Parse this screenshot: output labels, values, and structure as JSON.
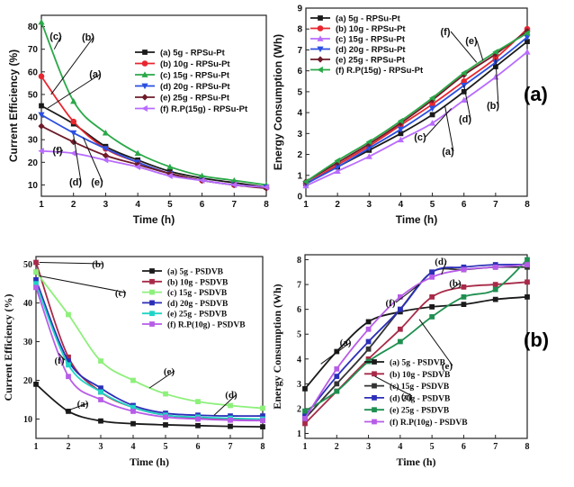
{
  "panel_labels": [
    "(a)",
    "(b)"
  ],
  "chart_data": [
    {
      "type": "line",
      "title": "",
      "xlabel": "Time (h)",
      "ylabel": "Current Efficiency (%)",
      "xlim": [
        1,
        8
      ],
      "ylim": [
        5,
        85
      ],
      "xticks": [
        "1",
        "2",
        "3",
        "4",
        "5",
        "6",
        "7",
        "8"
      ],
      "yticks": [
        "10",
        "20",
        "30",
        "40",
        "50",
        "60",
        "70",
        "80"
      ],
      "font": "sans",
      "x": [
        1,
        2,
        3,
        4,
        5,
        6,
        7,
        8
      ],
      "series": [
        {
          "name": "(a) 5g - RPSu-Pt",
          "tag": "(a)",
          "color": "#1a1a1a",
          "marker": "square",
          "values": [
            45,
            37,
            27,
            21,
            16,
            13,
            11,
            9
          ]
        },
        {
          "name": "(b) 10g - RPSu-Pt",
          "tag": "(b)",
          "color": "#e8262f",
          "marker": "circle",
          "values": [
            58,
            38,
            26,
            20,
            15,
            12,
            10,
            9
          ]
        },
        {
          "name": "(c) 15g - RPSu-Pt",
          "tag": "(c)",
          "color": "#2aa848",
          "marker": "triangle",
          "values": [
            82,
            47,
            33,
            24,
            18,
            14,
            12,
            10
          ]
        },
        {
          "name": "(d) 20g - RPSu-Pt",
          "tag": "(d)",
          "color": "#2b4fe0",
          "marker": "triangle-down",
          "values": [
            41,
            33,
            26,
            20,
            15,
            12,
            10,
            9
          ]
        },
        {
          "name": "(e) 25g - RPSu-Pt",
          "tag": "(e)",
          "color": "#6e1b2a",
          "marker": "diamond",
          "values": [
            36,
            29,
            23,
            19,
            15,
            12,
            10,
            8.5
          ]
        },
        {
          "name": "(f) R.P(15g) - RPSu-Pt",
          "tag": "(f)",
          "color": "#b86bff",
          "marker": "triangle-left",
          "values": [
            25,
            24,
            21,
            18,
            14,
            12,
            10,
            9
          ]
        }
      ]
    },
    {
      "type": "line",
      "title": "",
      "xlabel": "Time (h)",
      "ylabel": "Energy Consumption (Wh)",
      "xlim": [
        1,
        8
      ],
      "ylim": [
        0,
        9
      ],
      "xticks": [
        "1",
        "2",
        "3",
        "4",
        "5",
        "6",
        "7",
        "8"
      ],
      "yticks": [
        "0",
        "1",
        "2",
        "3",
        "4",
        "5",
        "6",
        "7",
        "8",
        "9"
      ],
      "font": "sans",
      "x": [
        1,
        2,
        3,
        4,
        5,
        6,
        7,
        8
      ],
      "series": [
        {
          "name": "(a) 5g - RPSu-Pt",
          "tag": "(a)",
          "color": "#1a1a1a",
          "marker": "square",
          "values": [
            0.6,
            1.4,
            2.2,
            3.0,
            3.9,
            5.0,
            6.2,
            7.4
          ]
        },
        {
          "name": "(b) 10g - RPSu-Pt",
          "tag": "(b)",
          "color": "#e8262f",
          "marker": "circle",
          "values": [
            0.6,
            1.5,
            2.4,
            3.4,
            4.4,
            5.5,
            6.6,
            8.0
          ]
        },
        {
          "name": "(c) 15g - RPSu-Pt",
          "tag": "(c)",
          "color": "#b86bff",
          "marker": "triangle",
          "values": [
            0.5,
            1.2,
            1.9,
            2.7,
            3.5,
            4.6,
            5.7,
            6.9
          ]
        },
        {
          "name": "(d) 20g - RPSu-Pt",
          "tag": "(d)",
          "color": "#2b4fe0",
          "marker": "triangle-down",
          "values": [
            0.6,
            1.4,
            2.3,
            3.2,
            4.2,
            5.3,
            6.4,
            7.6
          ]
        },
        {
          "name": "(e) 25g - RPSu-Pt",
          "tag": "(e)",
          "color": "#6e1b2a",
          "marker": "diamond",
          "values": [
            0.7,
            1.6,
            2.5,
            3.5,
            4.6,
            5.8,
            6.8,
            7.9
          ]
        },
        {
          "name": "(f) R.P(15g) - RPSu-Pt",
          "tag": "(f)",
          "color": "#2aa848",
          "marker": "triangle-left",
          "values": [
            0.7,
            1.7,
            2.6,
            3.6,
            4.7,
            5.9,
            6.9,
            7.8
          ]
        }
      ],
      "annotation_labels": [
        "(a)",
        "(b)",
        "(c)",
        "(d)",
        "(e)",
        "(f)"
      ]
    },
    {
      "type": "line",
      "title": "",
      "xlabel": "Time (h)",
      "ylabel": "Current Efficiency (%)",
      "xlim": [
        1,
        8
      ],
      "ylim": [
        5,
        52
      ],
      "xticks": [
        "1",
        "2",
        "3",
        "4",
        "5",
        "6",
        "7",
        "8"
      ],
      "yticks": [
        "10",
        "20",
        "30",
        "40",
        "50"
      ],
      "font": "serif",
      "x": [
        1,
        2,
        3,
        4,
        5,
        6,
        7,
        8
      ],
      "series": [
        {
          "name": "(a) 5g - PSDVB",
          "tag": "(a)",
          "color": "#1a1a1a",
          "marker": "square",
          "values": [
            19,
            12,
            9.5,
            8.8,
            8.5,
            8.3,
            8.1,
            8.0
          ]
        },
        {
          "name": "(b) 10g - PSDVB",
          "tag": "(b)",
          "color": "#a82a48",
          "marker": "square",
          "values": [
            50.5,
            26,
            17,
            13,
            11,
            10.3,
            10,
            9.8
          ]
        },
        {
          "name": "(c) 15g - PSDVB",
          "tag": "(c)",
          "color": "#8df07a",
          "marker": "square",
          "values": [
            48,
            37,
            25,
            20,
            16.5,
            14.5,
            13.5,
            12.8
          ]
        },
        {
          "name": "(d) 20g - PSDVB",
          "tag": "(d)",
          "color": "#2b2fb8",
          "marker": "square",
          "values": [
            46,
            25,
            18,
            13.5,
            11.5,
            11,
            10.8,
            10.8
          ]
        },
        {
          "name": "(e) 25g - PSDVB",
          "tag": "(e)",
          "color": "#1fd4c6",
          "marker": "square",
          "values": [
            45,
            24,
            17,
            13,
            11,
            10.5,
            10.2,
            10
          ]
        },
        {
          "name": "(f) R.P(10g) - PSDVB",
          "tag": "(f)",
          "color": "#b75ce8",
          "marker": "square",
          "values": [
            44,
            21,
            15,
            12,
            10.5,
            10,
            9.7,
            9.6
          ]
        }
      ]
    },
    {
      "type": "line",
      "title": "",
      "xlabel": "Time (h)",
      "ylabel": "Energy Consumption (Wh)",
      "xlim": [
        1,
        8
      ],
      "ylim": [
        0.8,
        8.2
      ],
      "xticks": [
        "1",
        "2",
        "3",
        "4",
        "5",
        "6",
        "7",
        "8"
      ],
      "yticks": [
        "1",
        "2",
        "3",
        "4",
        "5",
        "6",
        "7",
        "8"
      ],
      "font": "serif",
      "x": [
        1,
        2,
        3,
        4,
        5,
        6,
        7,
        8
      ],
      "series": [
        {
          "name": "(a) 5g - PSDVB",
          "tag": "(a)",
          "color": "#1a1a1a",
          "marker": "square",
          "values": [
            2.8,
            4.3,
            5.5,
            5.9,
            6.1,
            6.2,
            6.4,
            6.5
          ]
        },
        {
          "name": "(b) 10g - PSDVB",
          "tag": "(b)",
          "color": "#a82a48",
          "marker": "square",
          "values": [
            1.4,
            2.7,
            4.0,
            5.2,
            6.5,
            6.9,
            7.0,
            7.1
          ]
        },
        {
          "name": "(c) 15g - PSDVB",
          "tag": "(c)",
          "color": "#333333",
          "marker": "square",
          "values": [
            1.6,
            3.0,
            4.4,
            6.0,
            7.5,
            7.6,
            7.7,
            7.7
          ]
        },
        {
          "name": "(d) 20g - PSDVB",
          "tag": "(d)",
          "color": "#2b2fb8",
          "marker": "square",
          "values": [
            1.7,
            3.3,
            4.7,
            6.0,
            7.5,
            7.7,
            7.8,
            7.8
          ]
        },
        {
          "name": "(e) 25g - PSDVB",
          "tag": "(e)",
          "color": "#1f8f50",
          "marker": "square",
          "values": [
            1.9,
            2.7,
            3.9,
            4.7,
            5.7,
            6.5,
            6.8,
            8.0
          ]
        },
        {
          "name": "(f) R.P(10g) - PSDVB",
          "tag": "(f)",
          "color": "#b75ce8",
          "marker": "square",
          "values": [
            1.6,
            3.6,
            5.2,
            6.5,
            7.3,
            7.6,
            7.7,
            7.8
          ]
        }
      ],
      "annotation_labels": [
        "(a)",
        "(b)",
        "(c)",
        "(d)",
        "(e)",
        "(f)"
      ]
    }
  ]
}
